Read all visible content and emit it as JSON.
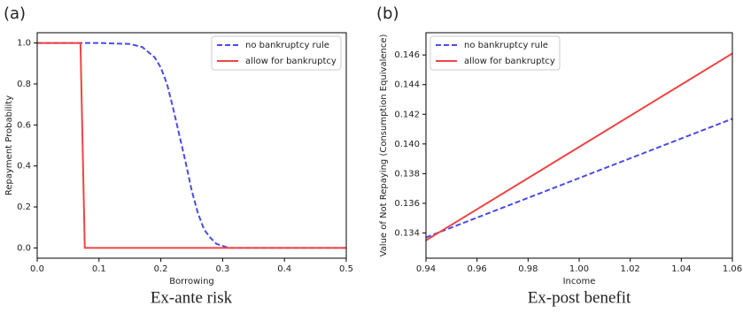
{
  "chart_data": [
    {
      "type": "line",
      "panel_label": "(a)",
      "caption": "Ex-ante risk",
      "x_label": "Borrowing",
      "y_label": "Repayment Probability",
      "xlim": [
        0,
        0.5
      ],
      "ylim": [
        -0.05,
        1.05
      ],
      "xticks": [
        {
          "value": 0,
          "label": "0.0"
        },
        0.1,
        0.2,
        0.3,
        0.4,
        0.5
      ],
      "yticks": [
        {
          "value": 0,
          "label": "0.0"
        },
        0.2,
        0.4,
        0.6,
        0.8,
        {
          "value": 1,
          "label": "1.0"
        }
      ],
      "legend": "upper right",
      "series": [
        {
          "name": "no bankruptcy rule",
          "color": "#4b4be8",
          "dash": "dashed",
          "x": [
            0,
            0.1,
            0.15,
            0.17,
            0.19,
            0.2,
            0.21,
            0.22,
            0.23,
            0.24,
            0.25,
            0.26,
            0.27,
            0.28,
            0.29,
            0.3,
            0.31,
            0.35,
            0.5
          ],
          "values": [
            1,
            1,
            0.995,
            0.98,
            0.93,
            0.88,
            0.8,
            0.68,
            0.55,
            0.42,
            0.28,
            0.17,
            0.09,
            0.05,
            0.02,
            0.01,
            0,
            0,
            0
          ]
        },
        {
          "name": "allow for bankruptcy",
          "color": "#ee4444",
          "dash": "solid",
          "x": [
            0,
            0.07,
            0.077,
            0.5
          ],
          "values": [
            1,
            1,
            0,
            0
          ]
        }
      ]
    },
    {
      "type": "line",
      "panel_label": "(b)",
      "caption": "Ex-post benefit",
      "x_label": "Income",
      "y_label": "Value of Not Repaying (Consumption Equivalence)",
      "xlim": [
        0.94,
        1.06
      ],
      "ylim": [
        0.1323,
        0.1475
      ],
      "xticks": [
        0.94,
        0.96,
        0.98,
        {
          "value": 1,
          "label": "1.00"
        },
        1.02,
        1.04,
        1.06
      ],
      "yticks": [
        0.134,
        0.136,
        0.138,
        {
          "value": 0.14,
          "label": "0.140"
        },
        0.142,
        0.144,
        0.146
      ],
      "legend": "upper left",
      "series": [
        {
          "name": "no bankruptcy rule",
          "color": "#4b4be8",
          "dash": "dashed",
          "x": [
            0.94,
            1.06
          ],
          "values": [
            0.1337,
            0.1417
          ]
        },
        {
          "name": "allow for bankruptcy",
          "color": "#ee4444",
          "dash": "solid",
          "x": [
            0.94,
            1.06
          ],
          "values": [
            0.1335,
            0.1461
          ]
        }
      ]
    }
  ]
}
